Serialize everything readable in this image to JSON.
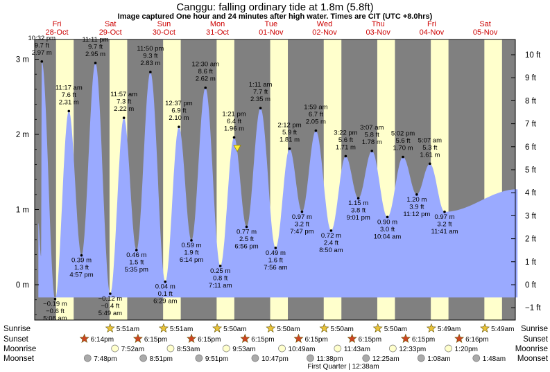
{
  "header": {
    "title": "Canggu: falling  ordinary tide at 1.8m (5.8ft)",
    "subtitle": "Image captured One hour and 24 minutes after high water. Times are CIT (UTC +8.0hrs)"
  },
  "colors": {
    "day": "#ffffcc",
    "night": "#808080",
    "tide": "#9aaaff",
    "dayLabel": "#cc0000",
    "sunrise_star": "#e8c23a",
    "sunset_star": "#cc4422",
    "moonrise": "#ffffcc",
    "moonset": "#aaaaaa",
    "marker": "#ffee33"
  },
  "chart_data": {
    "type": "area",
    "title": "Canggu: falling  ordinary tide at 1.8m (5.8ft)",
    "left_axis_unit": "m",
    "left_ticks": [
      {
        "value": 3,
        "label": "3 m"
      },
      {
        "value": 2,
        "label": "2 m"
      },
      {
        "value": 1,
        "label": "1 m"
      },
      {
        "value": 0,
        "label": "0 m"
      }
    ],
    "right_ticks": [
      {
        "ft": 10,
        "label": "10 ft"
      },
      {
        "ft": 9,
        "label": "9 ft"
      },
      {
        "ft": 8,
        "label": "8 ft"
      },
      {
        "ft": 7,
        "label": "7 ft"
      },
      {
        "ft": 6,
        "label": "6 ft"
      },
      {
        "ft": 5,
        "label": "5 ft"
      },
      {
        "ft": 4,
        "label": "4 ft"
      },
      {
        "ft": 3,
        "label": "3 ft"
      },
      {
        "ft": 2,
        "label": "2 ft"
      },
      {
        "ft": 1,
        "label": "1 ft"
      },
      {
        "ft": 0,
        "label": "0 ft"
      },
      {
        "ft": -1,
        "label": "−1 ft"
      }
    ],
    "ylim_m": [
      -0.45,
      3.25
    ],
    "days": [
      {
        "dow": "Fri",
        "date": "28-Oct",
        "weekend": false
      },
      {
        "dow": "Sat",
        "date": "29-Oct",
        "weekend": true
      },
      {
        "dow": "Sun",
        "date": "30-Oct",
        "weekend": true
      },
      {
        "dow": "Mon",
        "date": "31-Oct",
        "weekend": false
      },
      {
        "dow": "Tue",
        "date": "01-Nov",
        "weekend": false
      },
      {
        "dow": "Wed",
        "date": "02-Nov",
        "weekend": false
      },
      {
        "dow": "Thu",
        "date": "03-Nov",
        "weekend": false
      },
      {
        "dow": "Fri",
        "date": "04-Nov",
        "weekend": false
      },
      {
        "dow": "Sat",
        "date": "05-Nov",
        "weekend": true
      }
    ],
    "night_bands": [
      [
        -0.45,
        0.23
      ],
      [
        0.56,
        1.23
      ],
      [
        1.56,
        2.23
      ],
      [
        2.56,
        3.23
      ],
      [
        3.56,
        4.23
      ],
      [
        4.56,
        5.23
      ],
      [
        5.56,
        6.23
      ],
      [
        6.56,
        7.23
      ],
      [
        7.56,
        8.23
      ],
      [
        8.56,
        8.85
      ]
    ],
    "start_state": {
      "day": -0.1,
      "height": 0.82
    },
    "end_state": {
      "day": 8.85,
      "height": 1.27
    },
    "extremes": [
      {
        "day": -0.05,
        "height": 0.38,
        "type": "low",
        "labels": []
      },
      {
        "day": -0.035,
        "height": 2.97,
        "type": "high",
        "labels": [
          "10:32 pm",
          "9.7 ft",
          "2.97 m"
        ]
      },
      {
        "day": 0.213,
        "height": -0.19,
        "type": "low",
        "labels": [
          "−0.19 m",
          "−0.6 ft",
          "5:08 am"
        ]
      },
      {
        "day": 0.47,
        "height": 2.31,
        "type": "high",
        "labels": [
          "11:17 am",
          "7.6 ft",
          "2.31 m"
        ]
      },
      {
        "day": 0.706,
        "height": 0.39,
        "type": "low",
        "labels": [
          "0.39 m",
          "1.3 ft",
          "4:57 pm"
        ]
      },
      {
        "day": 0.966,
        "height": 2.95,
        "type": "high",
        "labels": [
          "11:11 pm",
          "9.7 ft",
          "2.95 m"
        ]
      },
      {
        "day": 1.242,
        "height": -0.12,
        "type": "low",
        "labels": [
          "−0.12 m",
          "−0.4 ft",
          "5:49 am"
        ]
      },
      {
        "day": 1.498,
        "height": 2.22,
        "type": "high",
        "labels": [
          "11:57 am",
          "7.3 ft",
          "2.22 m"
        ]
      },
      {
        "day": 1.733,
        "height": 0.46,
        "type": "low",
        "labels": [
          "0.46 m",
          "1.5 ft",
          "5:35 pm"
        ]
      },
      {
        "day": 1.993,
        "height": 2.83,
        "type": "high",
        "labels": [
          "11:50 pm",
          "9.3 ft",
          "2.83 m"
        ]
      },
      {
        "day": 2.27,
        "height": 0.04,
        "type": "low",
        "labels": [
          "0.04 m",
          "0.1 ft",
          "6:29 am"
        ]
      },
      {
        "day": 2.525,
        "height": 2.1,
        "type": "high",
        "labels": [
          "12:37 pm",
          "6.9 ft",
          "2.10 m"
        ]
      },
      {
        "day": 2.759,
        "height": 0.59,
        "type": "low",
        "labels": [
          "0.59 m",
          "1.9 ft",
          "6:14 pm"
        ]
      },
      {
        "day": 3.021,
        "height": 2.62,
        "type": "high",
        "labels": [
          "12:30 am",
          "8.6 ft",
          "2.62 m"
        ]
      },
      {
        "day": 3.299,
        "height": 0.25,
        "type": "low",
        "labels": [
          "0.25 m",
          "0.8 ft",
          "7:11 am"
        ]
      },
      {
        "day": 3.556,
        "height": 1.96,
        "type": "high",
        "labels": [
          "1:21 pm",
          "6.4 ft",
          "1.96 m"
        ]
      },
      {
        "day": 3.789,
        "height": 0.77,
        "type": "low",
        "labels": [
          "0.77 m",
          "2.5 ft",
          "6:56 pm"
        ]
      },
      {
        "day": 4.049,
        "height": 2.35,
        "type": "high",
        "labels": [
          "1:11 am",
          "7.7 ft",
          "2.35 m"
        ]
      },
      {
        "day": 4.331,
        "height": 0.49,
        "type": "low",
        "labels": [
          "0.49 m",
          "1.6 ft",
          "7:56 am"
        ]
      },
      {
        "day": 4.592,
        "height": 1.81,
        "type": "high",
        "labels": [
          "2:12 pm",
          "5.9 ft",
          "1.81 m"
        ]
      },
      {
        "day": 4.824,
        "height": 0.97,
        "type": "low",
        "labels": [
          "0.97 m",
          "3.2 ft",
          "7:47 pm"
        ]
      },
      {
        "day": 5.083,
        "height": 2.05,
        "type": "high",
        "labels": [
          "1:59 am",
          "6.7 ft",
          "2.05 m"
        ]
      },
      {
        "day": 5.368,
        "height": 0.72,
        "type": "low",
        "labels": [
          "0.72 m",
          "2.4 ft",
          "8:50 am"
        ]
      },
      {
        "day": 5.64,
        "height": 1.71,
        "type": "high",
        "labels": [
          "3:22 pm",
          "5.6 ft",
          "1.71 m"
        ]
      },
      {
        "day": 5.876,
        "height": 1.15,
        "type": "low",
        "labels": [
          "1.15 m",
          "3.8 ft",
          "9:01 pm"
        ]
      },
      {
        "day": 6.13,
        "height": 1.78,
        "type": "high",
        "labels": [
          "3:07 am",
          "5.8 ft",
          "1.78 m"
        ]
      },
      {
        "day": 6.419,
        "height": 0.9,
        "type": "low",
        "labels": [
          "0.90 m",
          "3.0 ft",
          "10:04 am"
        ]
      },
      {
        "day": 6.71,
        "height": 1.7,
        "type": "high",
        "labels": [
          "5:02 pm",
          "5.6 ft",
          "1.70 m"
        ]
      },
      {
        "day": 6.967,
        "height": 1.2,
        "type": "low",
        "labels": [
          "1.20 m",
          "3.9 ft",
          "11:12 pm"
        ]
      },
      {
        "day": 7.213,
        "height": 1.61,
        "type": "high",
        "labels": [
          "5:07 am",
          "5.3 ft",
          "1.61 m"
        ]
      },
      {
        "day": 7.487,
        "height": 0.97,
        "type": "low",
        "labels": [
          "0.97 m",
          "3.2 ft",
          "11:41 am"
        ]
      }
    ],
    "current_marker": {
      "day": 3.614,
      "height": 1.8
    },
    "sun_moon": {
      "sunrise": {
        "label": "Sunrise",
        "events": [
          {
            "day": 1.24,
            "text": "5:51am"
          },
          {
            "day": 2.24,
            "text": "5:51am"
          },
          {
            "day": 3.24,
            "text": "5:50am"
          },
          {
            "day": 4.24,
            "text": "5:50am"
          },
          {
            "day": 5.24,
            "text": "5:50am"
          },
          {
            "day": 6.24,
            "text": "5:50am"
          },
          {
            "day": 7.24,
            "text": "5:49am"
          },
          {
            "day": 8.24,
            "text": "5:49am"
          }
        ]
      },
      "sunset": {
        "label": "Sunset",
        "events": [
          {
            "day": 0.76,
            "text": "6:14pm"
          },
          {
            "day": 1.76,
            "text": "6:15pm"
          },
          {
            "day": 2.76,
            "text": "6:15pm"
          },
          {
            "day": 3.76,
            "text": "6:15pm"
          },
          {
            "day": 4.76,
            "text": "6:15pm"
          },
          {
            "day": 5.76,
            "text": "6:15pm"
          },
          {
            "day": 6.76,
            "text": "6:15pm"
          },
          {
            "day": 7.76,
            "text": "6:16pm"
          }
        ]
      },
      "moonrise": {
        "label": "Moonrise",
        "events": [
          {
            "day": 1.33,
            "text": "7:52am"
          },
          {
            "day": 2.37,
            "text": "8:53am"
          },
          {
            "day": 3.41,
            "text": "9:53am"
          },
          {
            "day": 4.45,
            "text": "10:49am"
          },
          {
            "day": 5.49,
            "text": "11:43am"
          },
          {
            "day": 6.52,
            "text": "12:33pm"
          },
          {
            "day": 7.56,
            "text": "1:20pm"
          }
        ]
      },
      "moonset": {
        "label": "Moonset",
        "events": [
          {
            "day": 0.82,
            "text": "7:48pm"
          },
          {
            "day": 1.86,
            "text": "8:51pm"
          },
          {
            "day": 2.9,
            "text": "9:51pm"
          },
          {
            "day": 3.95,
            "text": "10:47pm"
          },
          {
            "day": 4.98,
            "text": "11:38pm"
          },
          {
            "day": 6.02,
            "text": "12:25am"
          },
          {
            "day": 7.05,
            "text": "1:08am"
          },
          {
            "day": 8.08,
            "text": "1:48am"
          }
        ]
      }
    },
    "moon_phase_note": "First Quarter | 12:38am"
  }
}
